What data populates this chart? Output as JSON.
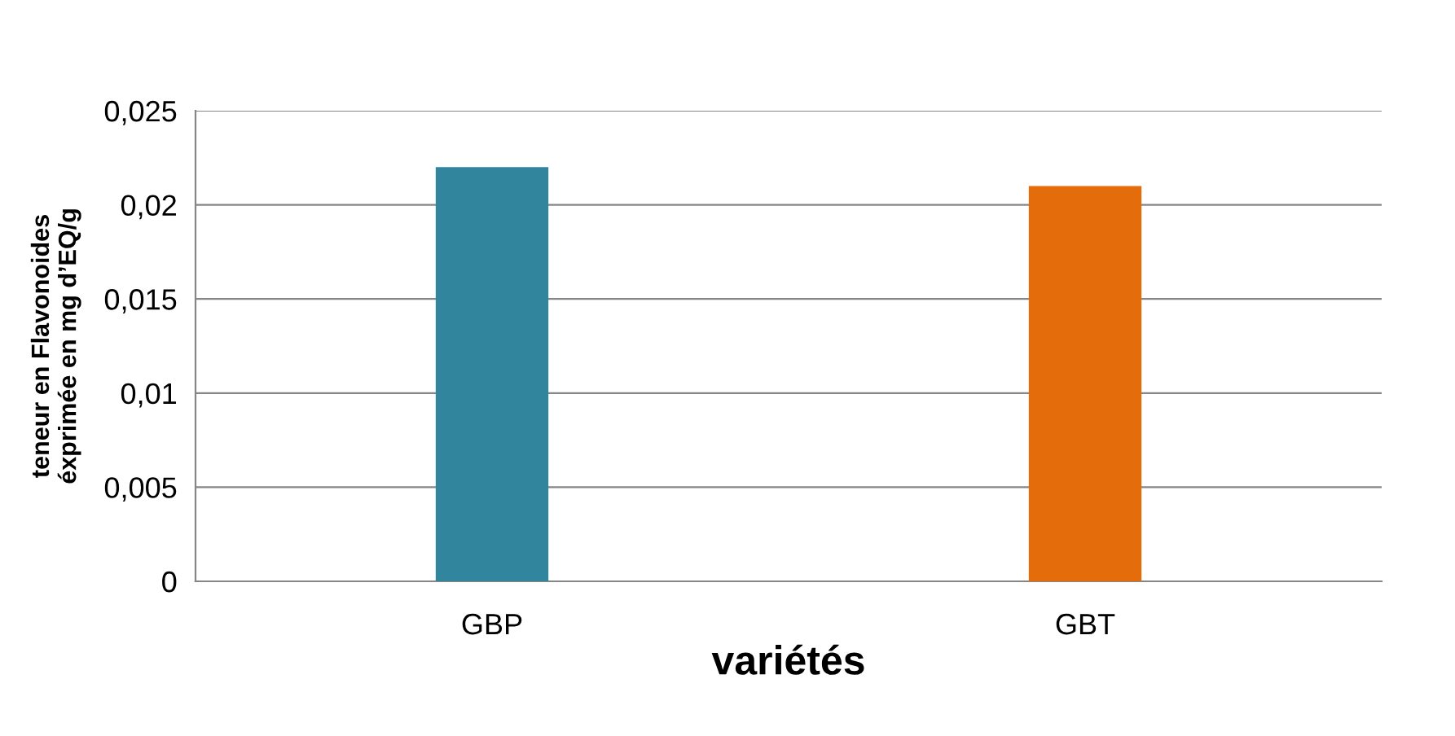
{
  "chart_data": {
    "type": "bar",
    "xlabel": "variétés",
    "ylabel": "teneur en Flavonoides\néxprimée en mg d’EQ/g",
    "categories": [
      "GBP",
      "GBT"
    ],
    "values": [
      0.022,
      0.021
    ],
    "colors": [
      "#31859c",
      "#e46c0a"
    ],
    "ylim": [
      0,
      0.025
    ],
    "yticks": [
      {
        "value": 0,
        "label": "0"
      },
      {
        "value": 0.005,
        "label": "0,005"
      },
      {
        "value": 0.01,
        "label": "0,01"
      },
      {
        "value": 0.015,
        "label": "0,015"
      },
      {
        "value": 0.02,
        "label": "0,02"
      },
      {
        "value": 0.025,
        "label": "0,025"
      }
    ],
    "grid": "y",
    "legend": false
  }
}
